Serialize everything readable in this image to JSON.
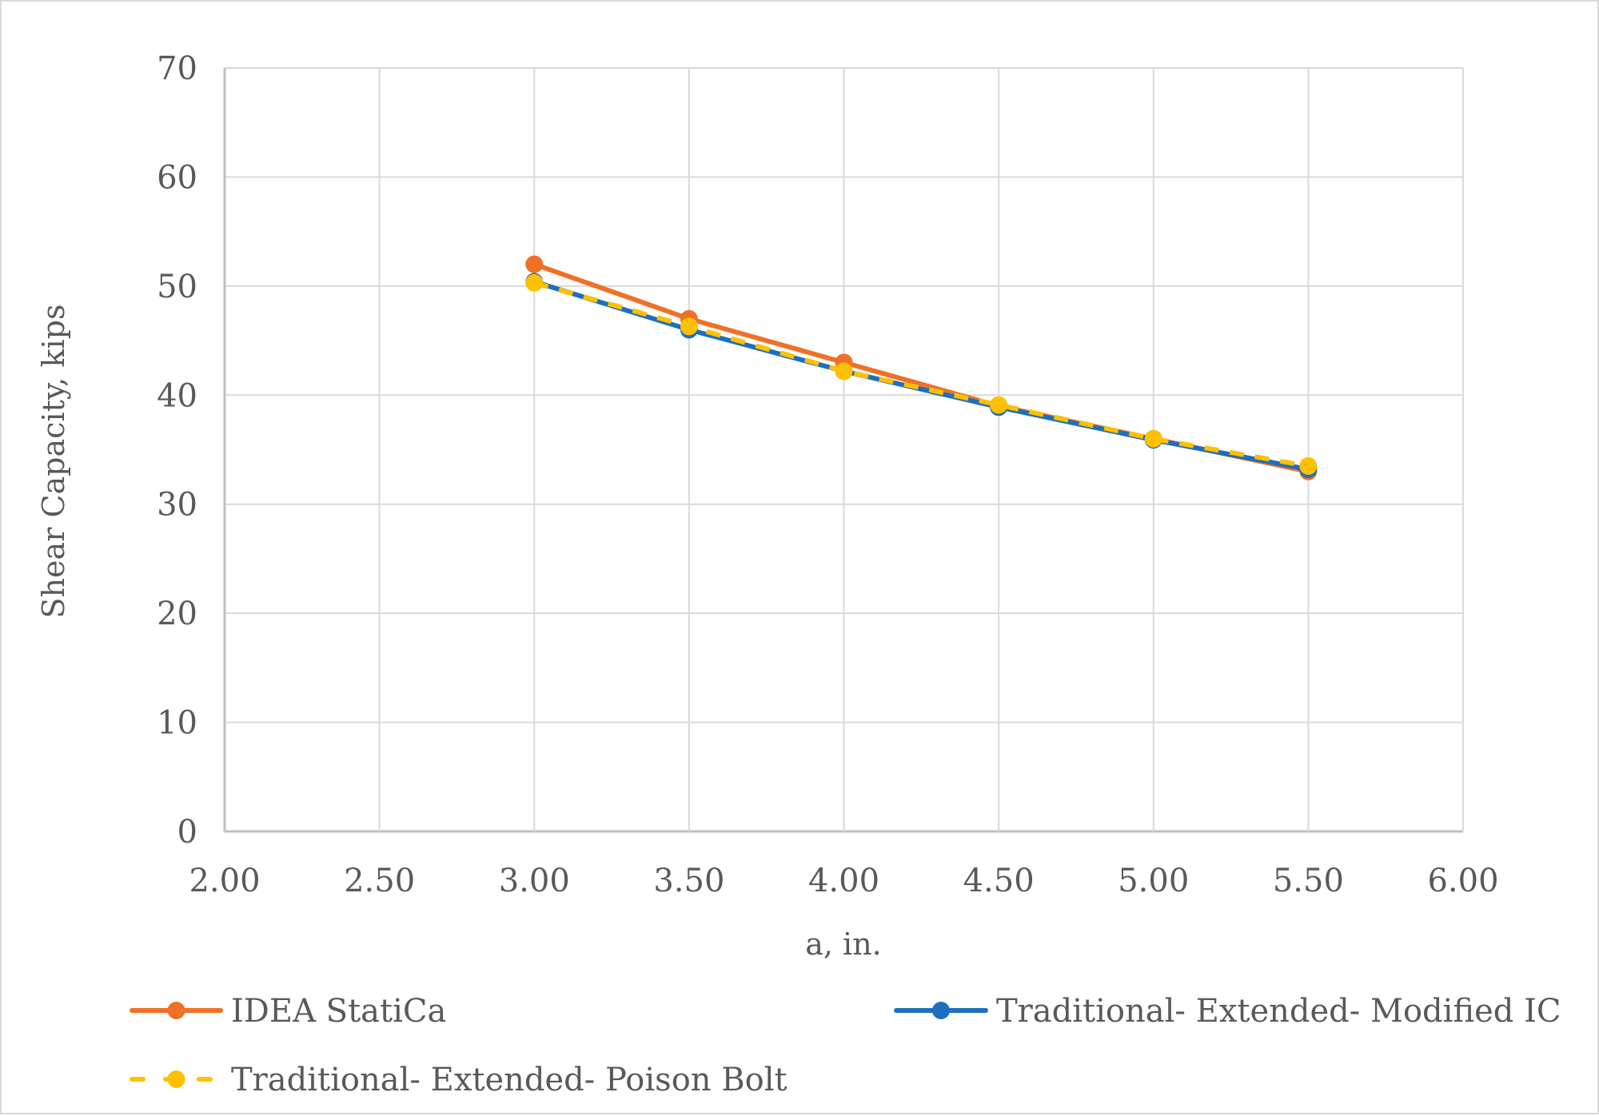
{
  "chart_data": {
    "type": "line",
    "title": "",
    "xlabel": "a, in.",
    "ylabel": "Shear Capacity, kips",
    "xlim": [
      2.0,
      6.0
    ],
    "ylim": [
      0,
      70
    ],
    "x_ticks": [
      "2.00",
      "2.50",
      "3.00",
      "3.50",
      "4.00",
      "4.50",
      "5.00",
      "5.50",
      "6.00"
    ],
    "y_ticks": [
      "0",
      "10",
      "20",
      "30",
      "40",
      "50",
      "60",
      "70"
    ],
    "grid": true,
    "legend_position": "bottom",
    "x": [
      3.0,
      3.5,
      4.0,
      4.5,
      5.0,
      5.5
    ],
    "series": [
      {
        "name": "IDEA StatiCa",
        "color": "#f07025",
        "dash": "solid",
        "values": [
          52.0,
          47.0,
          43.0,
          39.0,
          36.0,
          33.0
        ]
      },
      {
        "name": "Traditional- Extended- Modified IC",
        "color": "#1c6fbf",
        "dash": "solid",
        "values": [
          50.4,
          46.0,
          42.2,
          38.9,
          35.9,
          33.2
        ]
      },
      {
        "name": "Traditional- Extended- Poison Bolt",
        "color": "#ffc000",
        "dash": "dashed",
        "values": [
          50.3,
          46.3,
          42.2,
          39.1,
          36.0,
          33.5
        ]
      }
    ]
  },
  "colors": {
    "gridline": "#d9d9d9",
    "text": "#595959",
    "border": "#d9d9d9"
  }
}
